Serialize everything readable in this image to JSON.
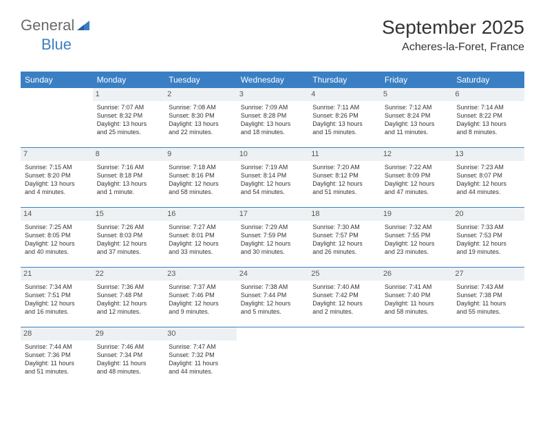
{
  "logo": {
    "text_gray": "General",
    "text_blue": "Blue"
  },
  "title": "September 2025",
  "location": "Acheres-la-Foret, France",
  "colors": {
    "header_bg": "#3a7fc4",
    "header_fg": "#ffffff",
    "daynum_bg": "#eef1f3",
    "row_divider": "#3a7fc4",
    "logo_gray": "#6a6a6a",
    "logo_blue": "#3a7fc4"
  },
  "weekdays": [
    "Sunday",
    "Monday",
    "Tuesday",
    "Wednesday",
    "Thursday",
    "Friday",
    "Saturday"
  ],
  "weeks": [
    [
      {
        "empty": true
      },
      {
        "day": "1",
        "sunrise": "Sunrise: 7:07 AM",
        "sunset": "Sunset: 8:32 PM",
        "dl1": "Daylight: 13 hours",
        "dl2": "and 25 minutes."
      },
      {
        "day": "2",
        "sunrise": "Sunrise: 7:08 AM",
        "sunset": "Sunset: 8:30 PM",
        "dl1": "Daylight: 13 hours",
        "dl2": "and 22 minutes."
      },
      {
        "day": "3",
        "sunrise": "Sunrise: 7:09 AM",
        "sunset": "Sunset: 8:28 PM",
        "dl1": "Daylight: 13 hours",
        "dl2": "and 18 minutes."
      },
      {
        "day": "4",
        "sunrise": "Sunrise: 7:11 AM",
        "sunset": "Sunset: 8:26 PM",
        "dl1": "Daylight: 13 hours",
        "dl2": "and 15 minutes."
      },
      {
        "day": "5",
        "sunrise": "Sunrise: 7:12 AM",
        "sunset": "Sunset: 8:24 PM",
        "dl1": "Daylight: 13 hours",
        "dl2": "and 11 minutes."
      },
      {
        "day": "6",
        "sunrise": "Sunrise: 7:14 AM",
        "sunset": "Sunset: 8:22 PM",
        "dl1": "Daylight: 13 hours",
        "dl2": "and 8 minutes."
      }
    ],
    [
      {
        "day": "7",
        "sunrise": "Sunrise: 7:15 AM",
        "sunset": "Sunset: 8:20 PM",
        "dl1": "Daylight: 13 hours",
        "dl2": "and 4 minutes."
      },
      {
        "day": "8",
        "sunrise": "Sunrise: 7:16 AM",
        "sunset": "Sunset: 8:18 PM",
        "dl1": "Daylight: 13 hours",
        "dl2": "and 1 minute."
      },
      {
        "day": "9",
        "sunrise": "Sunrise: 7:18 AM",
        "sunset": "Sunset: 8:16 PM",
        "dl1": "Daylight: 12 hours",
        "dl2": "and 58 minutes."
      },
      {
        "day": "10",
        "sunrise": "Sunrise: 7:19 AM",
        "sunset": "Sunset: 8:14 PM",
        "dl1": "Daylight: 12 hours",
        "dl2": "and 54 minutes."
      },
      {
        "day": "11",
        "sunrise": "Sunrise: 7:20 AM",
        "sunset": "Sunset: 8:12 PM",
        "dl1": "Daylight: 12 hours",
        "dl2": "and 51 minutes."
      },
      {
        "day": "12",
        "sunrise": "Sunrise: 7:22 AM",
        "sunset": "Sunset: 8:09 PM",
        "dl1": "Daylight: 12 hours",
        "dl2": "and 47 minutes."
      },
      {
        "day": "13",
        "sunrise": "Sunrise: 7:23 AM",
        "sunset": "Sunset: 8:07 PM",
        "dl1": "Daylight: 12 hours",
        "dl2": "and 44 minutes."
      }
    ],
    [
      {
        "day": "14",
        "sunrise": "Sunrise: 7:25 AM",
        "sunset": "Sunset: 8:05 PM",
        "dl1": "Daylight: 12 hours",
        "dl2": "and 40 minutes."
      },
      {
        "day": "15",
        "sunrise": "Sunrise: 7:26 AM",
        "sunset": "Sunset: 8:03 PM",
        "dl1": "Daylight: 12 hours",
        "dl2": "and 37 minutes."
      },
      {
        "day": "16",
        "sunrise": "Sunrise: 7:27 AM",
        "sunset": "Sunset: 8:01 PM",
        "dl1": "Daylight: 12 hours",
        "dl2": "and 33 minutes."
      },
      {
        "day": "17",
        "sunrise": "Sunrise: 7:29 AM",
        "sunset": "Sunset: 7:59 PM",
        "dl1": "Daylight: 12 hours",
        "dl2": "and 30 minutes."
      },
      {
        "day": "18",
        "sunrise": "Sunrise: 7:30 AM",
        "sunset": "Sunset: 7:57 PM",
        "dl1": "Daylight: 12 hours",
        "dl2": "and 26 minutes."
      },
      {
        "day": "19",
        "sunrise": "Sunrise: 7:32 AM",
        "sunset": "Sunset: 7:55 PM",
        "dl1": "Daylight: 12 hours",
        "dl2": "and 23 minutes."
      },
      {
        "day": "20",
        "sunrise": "Sunrise: 7:33 AM",
        "sunset": "Sunset: 7:53 PM",
        "dl1": "Daylight: 12 hours",
        "dl2": "and 19 minutes."
      }
    ],
    [
      {
        "day": "21",
        "sunrise": "Sunrise: 7:34 AM",
        "sunset": "Sunset: 7:51 PM",
        "dl1": "Daylight: 12 hours",
        "dl2": "and 16 minutes."
      },
      {
        "day": "22",
        "sunrise": "Sunrise: 7:36 AM",
        "sunset": "Sunset: 7:48 PM",
        "dl1": "Daylight: 12 hours",
        "dl2": "and 12 minutes."
      },
      {
        "day": "23",
        "sunrise": "Sunrise: 7:37 AM",
        "sunset": "Sunset: 7:46 PM",
        "dl1": "Daylight: 12 hours",
        "dl2": "and 9 minutes."
      },
      {
        "day": "24",
        "sunrise": "Sunrise: 7:38 AM",
        "sunset": "Sunset: 7:44 PM",
        "dl1": "Daylight: 12 hours",
        "dl2": "and 5 minutes."
      },
      {
        "day": "25",
        "sunrise": "Sunrise: 7:40 AM",
        "sunset": "Sunset: 7:42 PM",
        "dl1": "Daylight: 12 hours",
        "dl2": "and 2 minutes."
      },
      {
        "day": "26",
        "sunrise": "Sunrise: 7:41 AM",
        "sunset": "Sunset: 7:40 PM",
        "dl1": "Daylight: 11 hours",
        "dl2": "and 58 minutes."
      },
      {
        "day": "27",
        "sunrise": "Sunrise: 7:43 AM",
        "sunset": "Sunset: 7:38 PM",
        "dl1": "Daylight: 11 hours",
        "dl2": "and 55 minutes."
      }
    ],
    [
      {
        "day": "28",
        "sunrise": "Sunrise: 7:44 AM",
        "sunset": "Sunset: 7:36 PM",
        "dl1": "Daylight: 11 hours",
        "dl2": "and 51 minutes."
      },
      {
        "day": "29",
        "sunrise": "Sunrise: 7:46 AM",
        "sunset": "Sunset: 7:34 PM",
        "dl1": "Daylight: 11 hours",
        "dl2": "and 48 minutes."
      },
      {
        "day": "30",
        "sunrise": "Sunrise: 7:47 AM",
        "sunset": "Sunset: 7:32 PM",
        "dl1": "Daylight: 11 hours",
        "dl2": "and 44 minutes."
      },
      {
        "empty": true
      },
      {
        "empty": true
      },
      {
        "empty": true
      },
      {
        "empty": true
      }
    ]
  ]
}
